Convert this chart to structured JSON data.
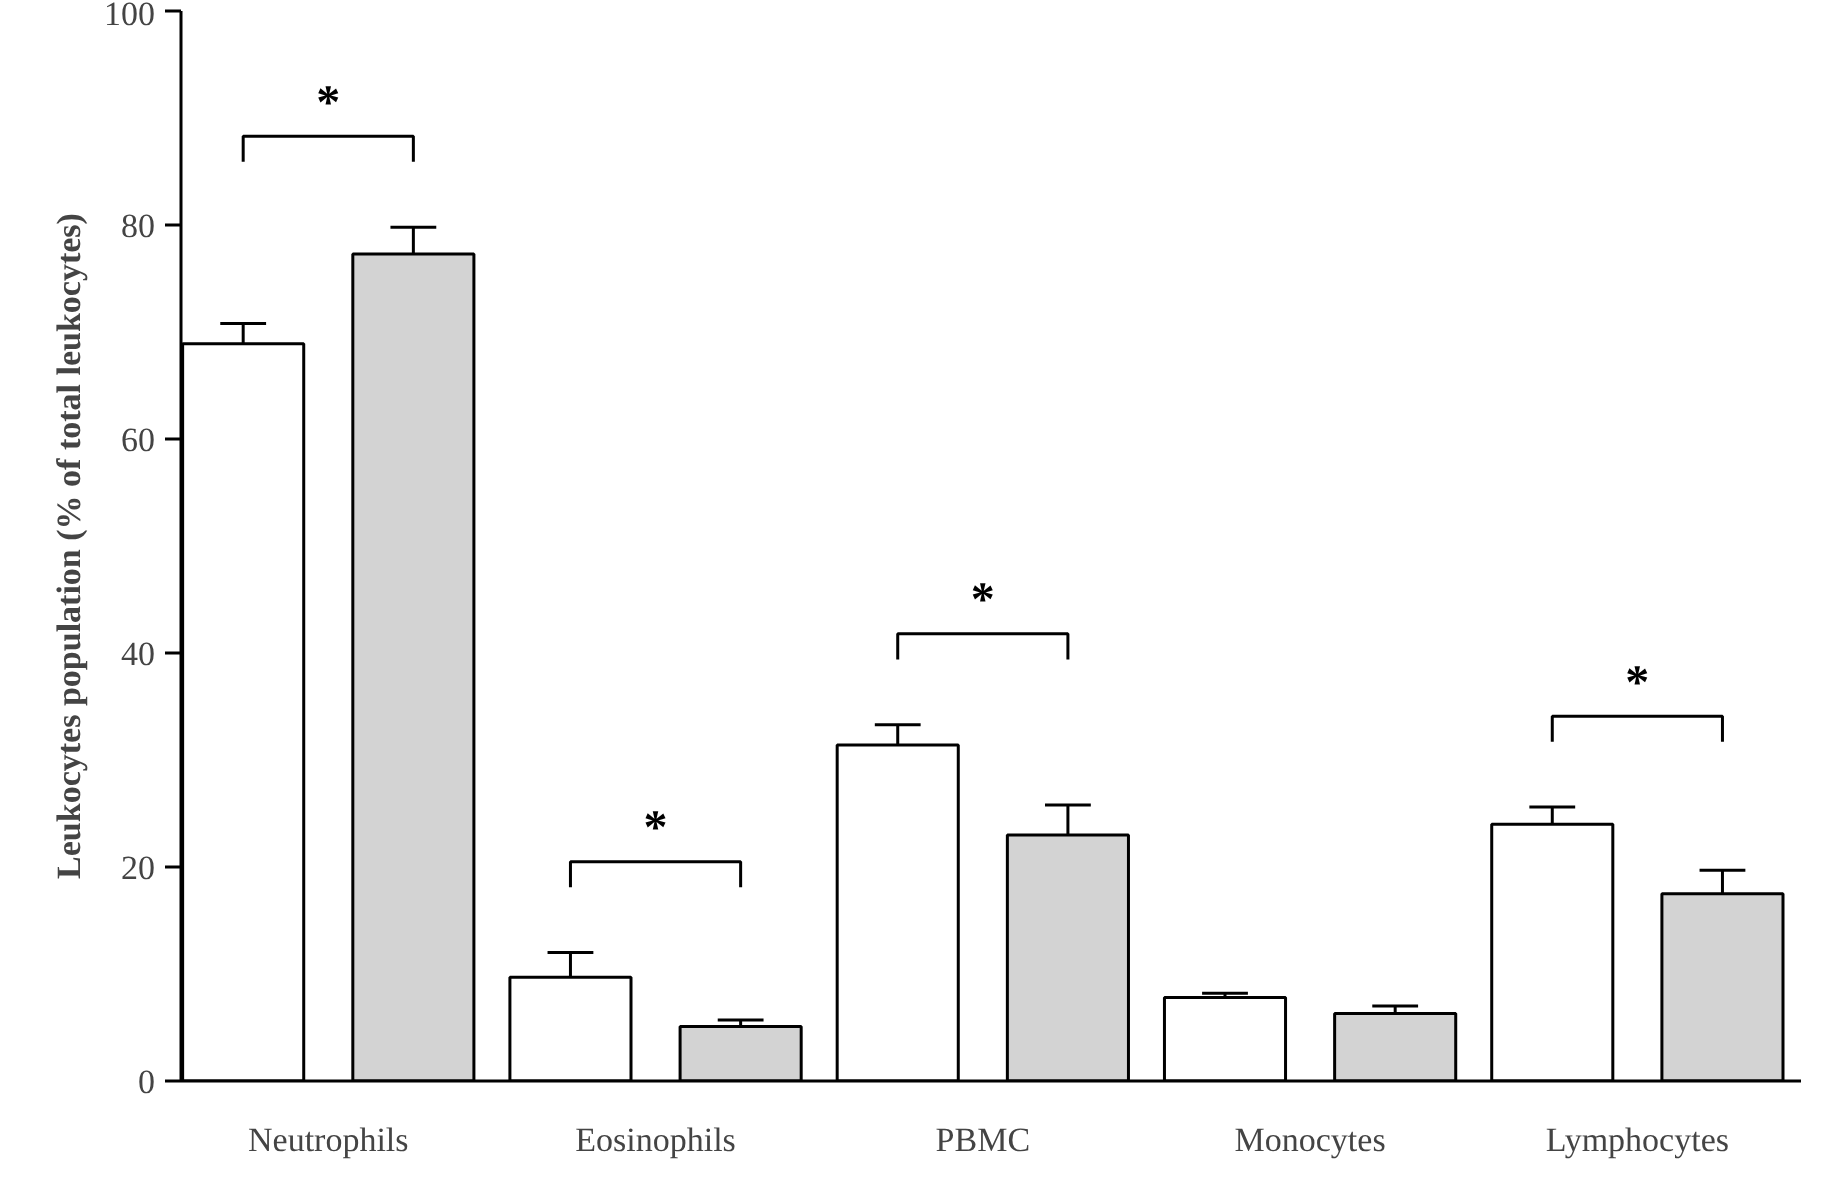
{
  "chart_data": {
    "type": "bar",
    "ylabel": "Leukocytes population (% of total leukocytes)",
    "categories": [
      "Neutrophils",
      "Eosinophils",
      "PBMC",
      "Monocytes",
      "Lymphocytes"
    ],
    "series": [
      {
        "color": "#ffffff",
        "values": [
          68.9,
          9.7,
          31.4,
          7.8,
          24.0
        ],
        "errors": [
          [
            68.9,
            70.8
          ],
          [
            9.7,
            12.0
          ],
          [
            31.4,
            33.3
          ],
          [
            7.8,
            8.2
          ],
          [
            24.0,
            25.6
          ]
        ]
      },
      {
        "color": "#d3d3d3",
        "values": [
          77.3,
          5.1,
          23.0,
          6.3,
          17.5
        ],
        "errors": [
          [
            77.3,
            79.8
          ],
          [
            5.1,
            5.7
          ],
          [
            23.0,
            25.8
          ],
          [
            6.3,
            7.0
          ],
          [
            17.5,
            19.7
          ]
        ]
      }
    ],
    "ylim": [
      0,
      100
    ],
    "yticks": [
      0,
      20,
      40,
      60,
      80,
      100
    ],
    "grid": false,
    "annotations": [
      "*",
      "*",
      "*",
      "*"
    ]
  }
}
